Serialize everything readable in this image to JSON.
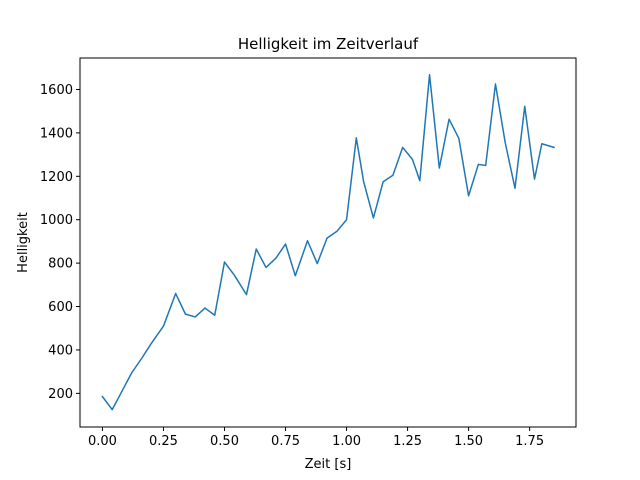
{
  "chart_data": {
    "type": "line",
    "title": "Helligkeit im Zeitverlauf",
    "xlabel": "Zeit [s]",
    "ylabel": "Helligkeit",
    "xlim": [
      -0.092,
      1.94
    ],
    "ylim": [
      45,
      1745
    ],
    "xticks": [
      0.0,
      0.25,
      0.5,
      0.75,
      1.0,
      1.25,
      1.5,
      1.75
    ],
    "xtick_labels": [
      "0.00",
      "0.25",
      "0.50",
      "0.75",
      "1.00",
      "1.25",
      "1.50",
      "1.75"
    ],
    "yticks": [
      200,
      400,
      600,
      800,
      1000,
      1200,
      1400,
      1600
    ],
    "ytick_labels": [
      "200",
      "400",
      "600",
      "800",
      "1000",
      "1200",
      "1400",
      "1600"
    ],
    "grid": false,
    "legend": false,
    "series": [
      {
        "color": "#1f77b4",
        "x": [
          0.0,
          0.04,
          0.08,
          0.12,
          0.16,
          0.2,
          0.25,
          0.3,
          0.34,
          0.38,
          0.42,
          0.46,
          0.5,
          0.54,
          0.59,
          0.63,
          0.67,
          0.71,
          0.75,
          0.79,
          0.84,
          0.88,
          0.92,
          0.96,
          1.0,
          1.04,
          1.07,
          1.11,
          1.15,
          1.19,
          1.23,
          1.27,
          1.3,
          1.34,
          1.38,
          1.42,
          1.46,
          1.5,
          1.54,
          1.57,
          1.61,
          1.65,
          1.69,
          1.73,
          1.77,
          1.8,
          1.85
        ],
        "y": [
          185,
          125,
          210,
          295,
          360,
          430,
          510,
          660,
          565,
          552,
          593,
          560,
          805,
          745,
          655,
          865,
          780,
          822,
          888,
          742,
          903,
          798,
          915,
          946,
          1000,
          1377,
          1175,
          1008,
          1175,
          1205,
          1333,
          1278,
          1180,
          1668,
          1238,
          1463,
          1375,
          1110,
          1255,
          1250,
          1625,
          1355,
          1145,
          1522,
          1187,
          1350,
          1333
        ]
      }
    ]
  }
}
